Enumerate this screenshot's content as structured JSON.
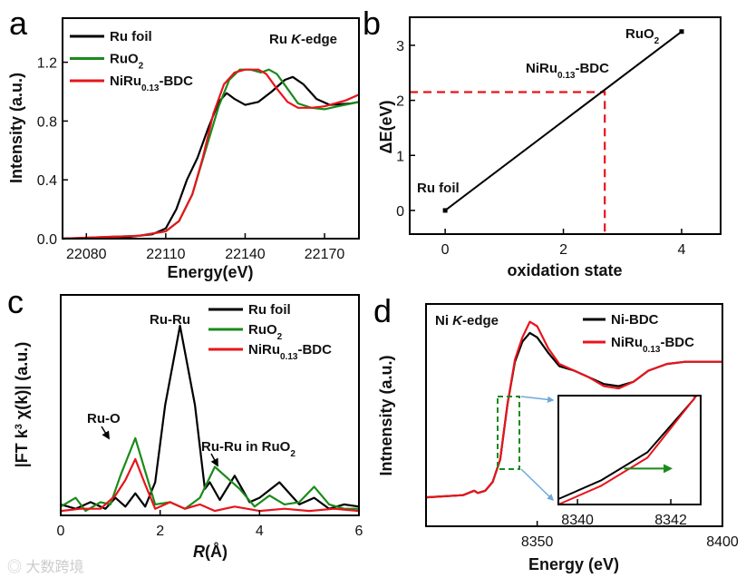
{
  "panel_letters": [
    "a",
    "b",
    "c",
    "d"
  ],
  "watermark": "大数跨境",
  "chart_data": [
    {
      "panel": "a",
      "type": "line",
      "xlabel": [
        [
          "Energy(eV)",
          ""
        ]
      ],
      "ylabel": [
        [
          "Intensity (a.u.)",
          ""
        ]
      ],
      "xlim": [
        22071,
        22183
      ],
      "ylim": [
        0,
        1.5
      ],
      "xticks": [
        22080,
        22110,
        22140,
        22170
      ],
      "yticks": [
        0,
        0.4,
        0.8,
        1.2
      ],
      "ytick_labels": [
        "0.0",
        "0.4",
        "0.8",
        "1.2"
      ],
      "annotations": [
        {
          "parts": [
            [
              "Ru ",
              ""
            ],
            [
              "K",
              "i"
            ],
            [
              "-edge",
              ""
            ]
          ]
        }
      ],
      "legend": "top-left",
      "series": [
        {
          "label": [
            [
              "Ru foil",
              ""
            ]
          ],
          "color": "#000000",
          "points": [
            [
              22071,
              0
            ],
            [
              22095,
              0.01
            ],
            [
              22105,
              0.03
            ],
            [
              22110,
              0.07
            ],
            [
              22114,
              0.2
            ],
            [
              22118,
              0.4
            ],
            [
              22122,
              0.55
            ],
            [
              22126,
              0.75
            ],
            [
              22130,
              0.93
            ],
            [
              22133,
              0.99
            ],
            [
              22136,
              0.95
            ],
            [
              22140,
              0.91
            ],
            [
              22145,
              0.93
            ],
            [
              22150,
              1.0
            ],
            [
              22155,
              1.08
            ],
            [
              22158,
              1.1
            ],
            [
              22162,
              1.05
            ],
            [
              22167,
              0.95
            ],
            [
              22172,
              0.91
            ],
            [
              22180,
              0.92
            ],
            [
              22183,
              0.93
            ]
          ]
        },
        {
          "label": [
            [
              "RuO",
              ""
            ],
            [
              "2",
              "sub"
            ]
          ],
          "color": "#1a8a1a",
          "points": [
            [
              22071,
              0
            ],
            [
              22100,
              0.02
            ],
            [
              22110,
              0.05
            ],
            [
              22115,
              0.12
            ],
            [
              22120,
              0.3
            ],
            [
              22125,
              0.6
            ],
            [
              22130,
              0.9
            ],
            [
              22134,
              1.08
            ],
            [
              22138,
              1.15
            ],
            [
              22142,
              1.15
            ],
            [
              22146,
              1.13
            ],
            [
              22149,
              1.15
            ],
            [
              22152,
              1.12
            ],
            [
              22156,
              1.02
            ],
            [
              22160,
              0.92
            ],
            [
              22165,
              0.89
            ],
            [
              22170,
              0.88
            ],
            [
              22175,
              0.9
            ],
            [
              22183,
              0.93
            ]
          ]
        },
        {
          "label": [
            [
              "NiRu",
              ""
            ],
            [
              "0.13",
              "sub"
            ],
            [
              "-BDC",
              ""
            ]
          ],
          "color": "#e8141c",
          "points": [
            [
              22071,
              0
            ],
            [
              22100,
              0.02
            ],
            [
              22110,
              0.05
            ],
            [
              22115,
              0.12
            ],
            [
              22120,
              0.3
            ],
            [
              22124,
              0.55
            ],
            [
              22128,
              0.85
            ],
            [
              22132,
              1.05
            ],
            [
              22136,
              1.13
            ],
            [
              22140,
              1.15
            ],
            [
              22145,
              1.15
            ],
            [
              22148,
              1.12
            ],
            [
              22152,
              1.02
            ],
            [
              22156,
              0.93
            ],
            [
              22160,
              0.89
            ],
            [
              22165,
              0.89
            ],
            [
              22170,
              0.9
            ],
            [
              22178,
              0.94
            ],
            [
              22183,
              0.98
            ]
          ]
        }
      ]
    },
    {
      "panel": "b",
      "type": "line",
      "xlabel": [
        [
          "oxidation state",
          ""
        ]
      ],
      "ylabel": [
        [
          "ΔE(eV)",
          ""
        ]
      ],
      "xlim": [
        -0.6,
        4.66
      ],
      "ylim": [
        -0.43,
        3.51
      ],
      "xticks": [
        0,
        2,
        4
      ],
      "yticks": [
        0,
        1,
        2,
        3
      ],
      "series": [
        {
          "label": [],
          "color": "#000000",
          "points": [
            [
              0,
              0
            ],
            [
              4,
              3.25
            ]
          ]
        }
      ],
      "guide": {
        "x": 2.7,
        "y": 2.15,
        "color": "#e8141c"
      },
      "annotations": [
        {
          "parts": [
            [
              "Ru foil",
              ""
            ]
          ]
        },
        {
          "parts": [
            [
              "RuO",
              ""
            ],
            [
              "2",
              "sub"
            ]
          ]
        },
        {
          "parts": [
            [
              "NiRu",
              ""
            ],
            [
              "0.13",
              "sub"
            ],
            [
              "-BDC",
              ""
            ]
          ]
        }
      ]
    },
    {
      "panel": "c",
      "type": "line",
      "xlabel": [
        [
          "R",
          "i"
        ],
        [
          "(Å)",
          ""
        ]
      ],
      "ylabel": [
        [
          "|FT k",
          ""
        ],
        [
          "3",
          "sup"
        ],
        [
          " χ(k)| (a.u.)",
          ""
        ]
      ],
      "xlim": [
        0,
        6
      ],
      "ylim": [
        0,
        10
      ],
      "xticks": [
        0,
        2,
        4,
        6
      ],
      "yticks": [],
      "legend": "top-right",
      "series": [
        {
          "label": [
            [
              "Ru foil",
              ""
            ]
          ],
          "color": "#000000",
          "points": [
            [
              0,
              0.5
            ],
            [
              0.3,
              0.3
            ],
            [
              0.6,
              0.6
            ],
            [
              0.9,
              0.3
            ],
            [
              1.1,
              0.8
            ],
            [
              1.3,
              0.4
            ],
            [
              1.5,
              1.0
            ],
            [
              1.7,
              0.4
            ],
            [
              1.9,
              1.5
            ],
            [
              2.1,
              5
            ],
            [
              2.4,
              8.6
            ],
            [
              2.7,
              5
            ],
            [
              2.9,
              1.2
            ],
            [
              3.0,
              1.5
            ],
            [
              3.2,
              0.7
            ],
            [
              3.5,
              1.8
            ],
            [
              3.8,
              0.6
            ],
            [
              4.0,
              0.8
            ],
            [
              4.4,
              1.5
            ],
            [
              4.8,
              0.5
            ],
            [
              5.1,
              0.8
            ],
            [
              5.4,
              0.3
            ],
            [
              5.7,
              0.5
            ],
            [
              6,
              0.4
            ]
          ]
        },
        {
          "label": [
            [
              "RuO",
              ""
            ],
            [
              "2",
              "sub"
            ]
          ],
          "color": "#1a8a1a",
          "points": [
            [
              0,
              0.4
            ],
            [
              0.3,
              0.8
            ],
            [
              0.5,
              0.2
            ],
            [
              0.8,
              0.6
            ],
            [
              1.0,
              0.5
            ],
            [
              1.2,
              1.8
            ],
            [
              1.5,
              3.5
            ],
            [
              1.7,
              2.0
            ],
            [
              1.9,
              0.5
            ],
            [
              2.2,
              0.6
            ],
            [
              2.5,
              0.3
            ],
            [
              2.8,
              0.8
            ],
            [
              3.1,
              2.2
            ],
            [
              3.4,
              1.6
            ],
            [
              3.6,
              1.2
            ],
            [
              3.9,
              0.4
            ],
            [
              4.2,
              0.9
            ],
            [
              4.5,
              0.5
            ],
            [
              4.8,
              0.6
            ],
            [
              5.1,
              1.3
            ],
            [
              5.4,
              0.5
            ],
            [
              5.7,
              0.3
            ],
            [
              6,
              0.3
            ]
          ]
        },
        {
          "label": [
            [
              "NiRu",
              ""
            ],
            [
              "0.13",
              "sub"
            ],
            [
              "-BDC",
              ""
            ]
          ],
          "color": "#e8141c",
          "points": [
            [
              0,
              0.2
            ],
            [
              0.4,
              0.3
            ],
            [
              0.8,
              0.3
            ],
            [
              1.1,
              0.9
            ],
            [
              1.3,
              1.6
            ],
            [
              1.5,
              2.55
            ],
            [
              1.7,
              1.4
            ],
            [
              1.9,
              0.3
            ],
            [
              2.2,
              0.6
            ],
            [
              2.5,
              0.3
            ],
            [
              2.8,
              0.5
            ],
            [
              3.1,
              0.2
            ],
            [
              3.5,
              0.4
            ],
            [
              4.0,
              0.2
            ],
            [
              4.5,
              0.3
            ],
            [
              5,
              0.2
            ],
            [
              5.5,
              0.3
            ],
            [
              6,
              0.2
            ]
          ]
        }
      ],
      "annotations": [
        {
          "parts": [
            [
              "Ru-Ru",
              ""
            ]
          ]
        },
        {
          "parts": [
            [
              "Ru-O",
              ""
            ]
          ]
        },
        {
          "parts": [
            [
              "Ru-Ru in RuO",
              ""
            ],
            [
              "2",
              "sub"
            ]
          ]
        }
      ]
    },
    {
      "panel": "d",
      "type": "line",
      "xlabel": [
        [
          "Energy (eV)",
          ""
        ]
      ],
      "ylabel": [
        [
          "Intnensity (a.u.)",
          ""
        ]
      ],
      "xlim": [
        8320,
        8400
      ],
      "ylim": [
        0,
        1
      ],
      "xticks": [
        8350,
        8400
      ],
      "yticks": [],
      "legend": "top-right",
      "annotations": [
        {
          "parts": [
            [
              "Ni ",
              ""
            ],
            [
              "K",
              "i"
            ],
            [
              "-edge",
              ""
            ]
          ]
        }
      ],
      "series": [
        {
          "label": [
            [
              "Ni-BDC",
              ""
            ]
          ],
          "color": "#000000",
          "points": [
            [
              8320,
              0.13
            ],
            [
              8330,
              0.14
            ],
            [
              8333,
              0.16
            ],
            [
              8334,
              0.15
            ],
            [
              8336,
              0.16
            ],
            [
              8338,
              0.2
            ],
            [
              8340,
              0.3
            ],
            [
              8342,
              0.55
            ],
            [
              8344,
              0.74
            ],
            [
              8346,
              0.83
            ],
            [
              8348,
              0.87
            ],
            [
              8350,
              0.85
            ],
            [
              8353,
              0.78
            ],
            [
              8356,
              0.72
            ],
            [
              8360,
              0.7
            ],
            [
              8364,
              0.67
            ],
            [
              8368,
              0.64
            ],
            [
              8372,
              0.63
            ],
            [
              8376,
              0.65
            ],
            [
              8380,
              0.7
            ],
            [
              8385,
              0.73
            ],
            [
              8390,
              0.74
            ],
            [
              8395,
              0.74
            ],
            [
              8400,
              0.74
            ]
          ]
        },
        {
          "label": [
            [
              "NiRu",
              ""
            ],
            [
              "0.13",
              "sub"
            ],
            [
              "-BDC",
              ""
            ]
          ],
          "color": "#e8141c",
          "points": [
            [
              8320,
              0.13
            ],
            [
              8330,
              0.14
            ],
            [
              8333,
              0.16
            ],
            [
              8334,
              0.15
            ],
            [
              8336,
              0.16
            ],
            [
              8338,
              0.2
            ],
            [
              8340,
              0.3
            ],
            [
              8342,
              0.55
            ],
            [
              8344,
              0.75
            ],
            [
              8346,
              0.85
            ],
            [
              8348,
              0.92
            ],
            [
              8350,
              0.9
            ],
            [
              8353,
              0.8
            ],
            [
              8356,
              0.73
            ],
            [
              8360,
              0.7
            ],
            [
              8364,
              0.67
            ],
            [
              8368,
              0.63
            ],
            [
              8372,
              0.62
            ],
            [
              8376,
              0.65
            ],
            [
              8380,
              0.7
            ],
            [
              8385,
              0.73
            ],
            [
              8390,
              0.74
            ],
            [
              8395,
              0.74
            ],
            [
              8400,
              0.74
            ]
          ]
        }
      ],
      "inset": {
        "xlim": [
          8339.59,
          8342.64
        ],
        "ylim": [
          0,
          1
        ],
        "xticks": [
          8340,
          8342
        ],
        "series": [
          {
            "color": "#000000",
            "points": [
              [
                8339.59,
                0.05
              ],
              [
                8340.5,
                0.22
              ],
              [
                8341.5,
                0.48
              ],
              [
                8342.5,
                0.97
              ],
              [
                8342.52,
                1.0
              ]
            ]
          },
          {
            "color": "#e8141c",
            "points": [
              [
                8339.59,
                0.0
              ],
              [
                8340.5,
                0.17
              ],
              [
                8341.5,
                0.43
              ],
              [
                8342.55,
                1.0
              ]
            ]
          }
        ],
        "shift_arrow": {
          "from": 8341.0,
          "to": 8342.0,
          "y": 0.33,
          "color": "#1a8a1a"
        }
      }
    }
  ]
}
